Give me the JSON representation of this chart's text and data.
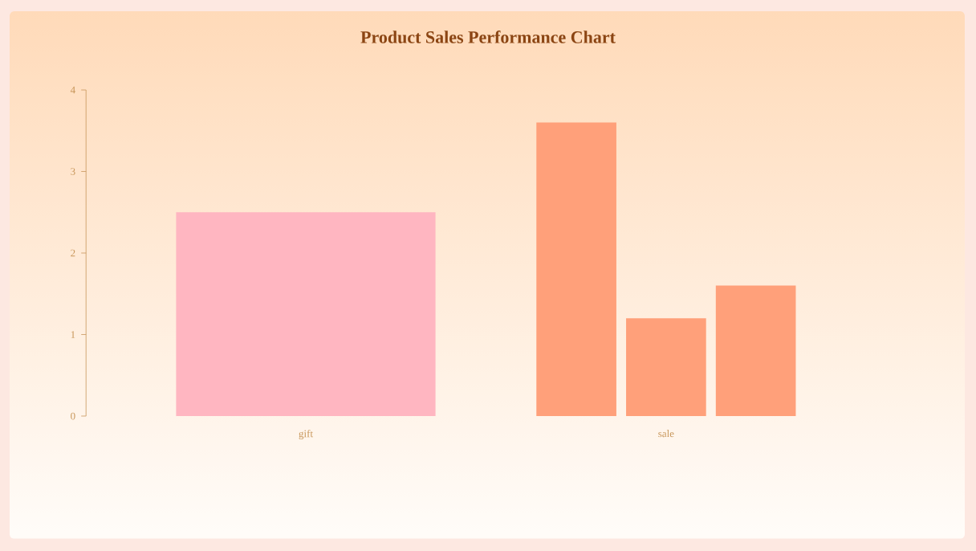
{
  "chart_data": {
    "type": "bar",
    "title": "Product Sales Performance Chart",
    "categories": [
      "gift",
      "sale"
    ],
    "series": [
      {
        "color": "#ffb6c1",
        "values": [
          2.5,
          null
        ]
      },
      {
        "color": "#ffa07a",
        "values": [
          null,
          3.6
        ]
      },
      {
        "color": "#ffa07a",
        "values": [
          null,
          1.2
        ]
      },
      {
        "color": "#ffa07a",
        "values": [
          null,
          1.6
        ]
      }
    ],
    "ylim": [
      0,
      4
    ],
    "yticks": [
      0,
      1,
      2,
      3,
      4
    ]
  }
}
